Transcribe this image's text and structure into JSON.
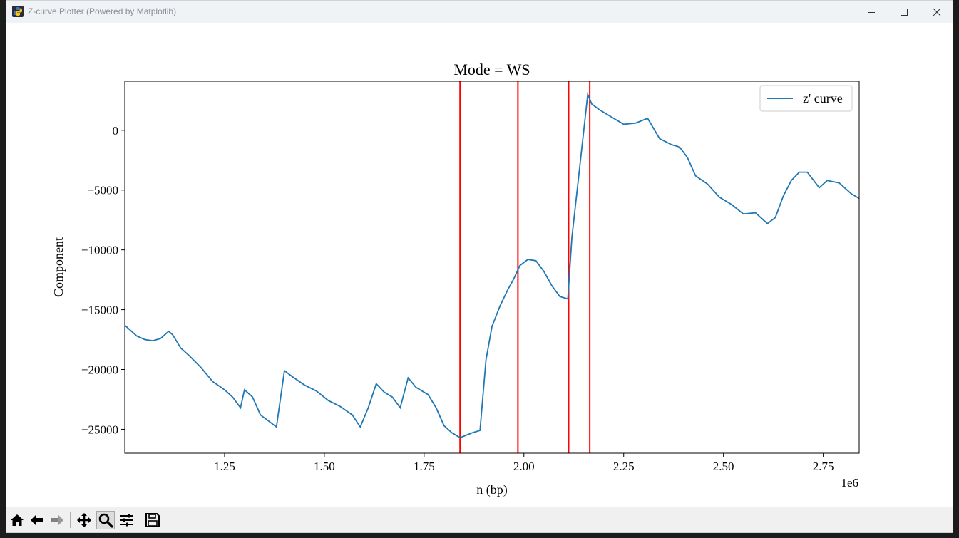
{
  "window": {
    "title": "Z-curve Plotter (Powered by Matplotlib)",
    "controls": [
      "minimize-icon",
      "maximize-icon",
      "close-icon"
    ]
  },
  "toolbar": {
    "tools": [
      "home-icon",
      "back-arrow-icon",
      "forward-arrow-icon",
      "pan-move-icon",
      "zoom-magnifier-icon",
      "configure-subplots-icon",
      "save-floppy-icon"
    ],
    "active": "zoom-magnifier-icon"
  },
  "colors": {
    "line": "#1f77b4",
    "vlines": "#ff0000"
  },
  "chart_data": {
    "type": "line",
    "title": "Mode = WS",
    "xlabel": "n (bp)",
    "ylabel": "Component",
    "x_offset_label": "1e6",
    "xlim": [
      1.0,
      2.84
    ],
    "ylim": [
      -27000,
      4100
    ],
    "xticks": [
      1.25,
      1.5,
      1.75,
      2.0,
      2.25,
      2.5,
      2.75
    ],
    "xtick_labels": [
      "1.25",
      "1.50",
      "1.75",
      "2.00",
      "2.25",
      "2.50",
      "2.75"
    ],
    "yticks": [
      0,
      -5000,
      -10000,
      -15000,
      -20000,
      -25000
    ],
    "ytick_labels": [
      "0",
      "−5000",
      "−10000",
      "−15000",
      "−20000",
      "−25000"
    ],
    "grid": false,
    "legend": {
      "position": "upper right",
      "entries": [
        "z' curve"
      ]
    },
    "series": [
      {
        "name": "z' curve",
        "x": [
          1.0,
          1.01,
          1.03,
          1.05,
          1.07,
          1.09,
          1.11,
          1.12,
          1.14,
          1.16,
          1.19,
          1.22,
          1.25,
          1.27,
          1.29,
          1.3,
          1.32,
          1.34,
          1.36,
          1.38,
          1.4,
          1.42,
          1.45,
          1.48,
          1.51,
          1.54,
          1.57,
          1.59,
          1.61,
          1.63,
          1.65,
          1.67,
          1.69,
          1.71,
          1.73,
          1.76,
          1.78,
          1.8,
          1.82,
          1.84,
          1.87,
          1.89,
          1.905,
          1.92,
          1.94,
          1.96,
          1.975,
          1.99,
          2.01,
          2.03,
          2.05,
          2.07,
          2.09,
          2.11,
          2.12,
          2.14,
          2.16,
          2.17,
          2.19,
          2.22,
          2.25,
          2.28,
          2.31,
          2.34,
          2.37,
          2.39,
          2.41,
          2.43,
          2.46,
          2.49,
          2.52,
          2.55,
          2.58,
          2.61,
          2.63,
          2.65,
          2.67,
          2.69,
          2.71,
          2.74,
          2.76,
          2.79,
          2.82,
          2.84
        ],
        "y": [
          -16300,
          -16600,
          -17200,
          -17500,
          -17600,
          -17400,
          -16800,
          -17100,
          -18200,
          -18800,
          -19800,
          -21000,
          -21700,
          -22300,
          -23200,
          -21700,
          -22300,
          -23800,
          -24300,
          -24800,
          -20100,
          -20600,
          -21300,
          -21800,
          -22600,
          -23100,
          -23800,
          -24800,
          -23200,
          -21200,
          -21900,
          -22300,
          -23200,
          -20700,
          -21500,
          -22100,
          -23200,
          -24700,
          -25300,
          -25700,
          -25300,
          -25100,
          -19200,
          -16400,
          -14700,
          -13300,
          -12400,
          -11300,
          -10800,
          -10900,
          -11800,
          -13000,
          -13900,
          -14100,
          -9000,
          -3000,
          3000,
          2200,
          1700,
          1100,
          500,
          600,
          1000,
          -700,
          -1200,
          -1400,
          -2300,
          -3800,
          -4500,
          -5600,
          -6200,
          -7000,
          -6900,
          -7800,
          -7300,
          -5500,
          -4200,
          -3500,
          -3500,
          -4800,
          -4200,
          -4400,
          -5300,
          -5700
        ]
      }
    ],
    "vlines": [
      1.84,
      1.985,
      2.112,
      2.165
    ]
  }
}
